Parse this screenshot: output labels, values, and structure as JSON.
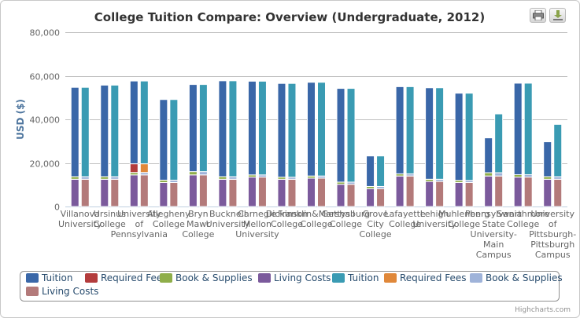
{
  "chart_data": {
    "type": "bar",
    "stacked": true,
    "title": "College Tuition Compare: Overview (Undergraduate, 2012)",
    "xlabel": "",
    "ylabel": "USD ($)",
    "ylim": [
      0,
      80000
    ],
    "yticks": [
      "0",
      "20,000",
      "40,000",
      "60,000",
      "80,000"
    ],
    "ytick_values": [
      0,
      20000,
      40000,
      60000,
      80000
    ],
    "categories": [
      [
        "Villanova",
        "University"
      ],
      [
        "Ursinus",
        "College"
      ],
      [
        "University",
        "of",
        "Pennsylvania"
      ],
      [
        "Allegheny",
        "College"
      ],
      [
        "Bryn",
        "Mawr",
        "College"
      ],
      [
        "Bucknell",
        "University"
      ],
      [
        "Carnegie",
        "Mellon",
        "University"
      ],
      [
        "Dickinson",
        "College"
      ],
      [
        "Franklin&Marshall",
        "College"
      ],
      [
        "Gettysburg",
        "College"
      ],
      [
        "Grove",
        "City",
        "College"
      ],
      [
        "Lafayette",
        "College"
      ],
      [
        "Lehigh",
        "University"
      ],
      [
        "Muhlenberg",
        "College"
      ],
      [
        "Pennsylvania",
        "State",
        "University-",
        "Main",
        "Campus"
      ],
      [
        "Swarthmore",
        "College"
      ],
      [
        "University",
        "of",
        "Pittsburgh-",
        "Pittsburgh",
        "Campus"
      ]
    ],
    "stacks": [
      {
        "series": [
          {
            "name": "Tuition",
            "color": "#3a67a8",
            "values": [
              41000,
              42000,
              38000,
              37000,
              40000,
              44000,
              43000,
              43000,
              43000,
              43000,
              14000,
              40000,
              42000,
              40000,
              16000,
              42000,
              16000
            ]
          },
          {
            "name": "Required Fees",
            "color": "#b33c3c",
            "values": [
              0,
              0,
              4000,
              0,
              0,
              0,
              0,
              0,
              0,
              0,
              0,
              0,
              0,
              0,
              0,
              0,
              0
            ]
          },
          {
            "name": "Book & Supplies",
            "color": "#8fae4a",
            "values": [
              1200,
              1200,
              1100,
              1100,
              1500,
              1200,
              1000,
              1000,
              1000,
              1000,
              1000,
              1000,
              1000,
              1000,
              1500,
              1100,
              1200
            ]
          },
          {
            "name": "Living Costs",
            "color": "#7b5a9c",
            "values": [
              12500,
              12500,
              14500,
              11000,
              14500,
              12500,
              13500,
              12500,
              13000,
              10200,
              8200,
              14000,
              11500,
              11000,
              14000,
              13500,
              12500
            ]
          }
        ]
      },
      {
        "series": [
          {
            "name": "Tuition",
            "color": "#3a9bb3",
            "values": [
              41000,
              42000,
              38000,
              37000,
              40000,
              44000,
              43000,
              43000,
              43000,
              43000,
              14000,
              40000,
              42000,
              40000,
              27000,
              42000,
              24000
            ]
          },
          {
            "name": "Required Fees",
            "color": "#e0883a",
            "values": [
              0,
              0,
              4000,
              0,
              0,
              0,
              0,
              0,
              0,
              0,
              0,
              0,
              0,
              0,
              0,
              0,
              0
            ]
          },
          {
            "name": "Book & Supplies",
            "color": "#9fb3d9",
            "values": [
              1200,
              1200,
              1100,
              1100,
              1500,
              1200,
              1000,
              1000,
              1000,
              1000,
              1000,
              1000,
              1000,
              1000,
              1500,
              1100,
              1200
            ]
          },
          {
            "name": "Living Costs",
            "color": "#b37a7a",
            "values": [
              12500,
              12500,
              14500,
              11000,
              14500,
              12500,
              13500,
              12500,
              13000,
              10200,
              8200,
              14000,
              11500,
              11000,
              14000,
              13500,
              12500
            ]
          }
        ]
      }
    ],
    "legend": {
      "position": "bottom",
      "items": [
        {
          "label": "Tuition",
          "color": "#3a67a8"
        },
        {
          "label": "Required Fees",
          "color": "#b33c3c"
        },
        {
          "label": "Book & Supplies",
          "color": "#8fae4a"
        },
        {
          "label": "Living Costs",
          "color": "#7b5a9c"
        },
        {
          "label": "Tuition",
          "color": "#3a9bb3"
        },
        {
          "label": "Required Fees",
          "color": "#e0883a"
        },
        {
          "label": "Book & Supplies",
          "color": "#9fb3d9"
        },
        {
          "label": "Living Costs",
          "color": "#b37a7a"
        }
      ]
    },
    "credit": "Highcharts.com"
  }
}
